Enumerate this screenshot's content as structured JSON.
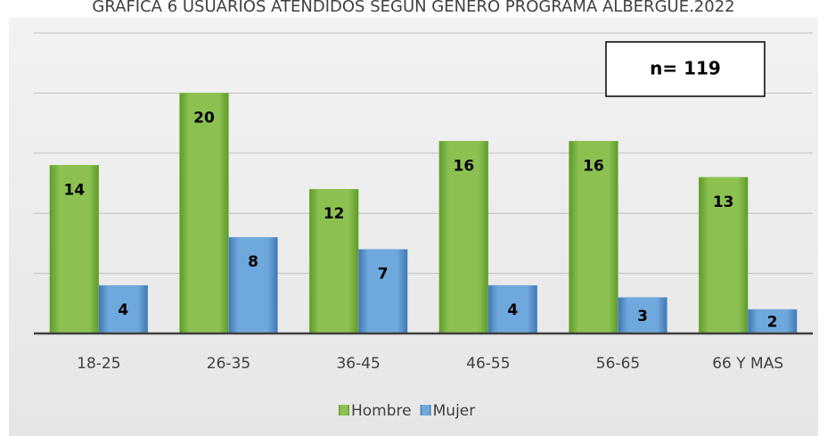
{
  "chart_data": {
    "type": "bar",
    "title": "GRAFICA 6 USUARIOS ATENDIDOS SEGUN GENERO PROGRAMA ALBERGUE.2022",
    "annotation": "n= 119",
    "categories": [
      "18-25",
      "26-35",
      "36-45",
      "46-55",
      "56-65",
      "66 Y MAS"
    ],
    "series": [
      {
        "name": "Hombre",
        "color": "#8cc152",
        "values": [
          14,
          20,
          12,
          16,
          16,
          13
        ]
      },
      {
        "name": "Mujer",
        "color": "#6fa8dc",
        "values": [
          4,
          8,
          7,
          4,
          3,
          2
        ]
      }
    ],
    "ylim": [
      0,
      25
    ],
    "yticks": [
      0,
      5,
      10,
      15,
      20,
      25
    ],
    "grid": true,
    "legend": "bottom"
  }
}
